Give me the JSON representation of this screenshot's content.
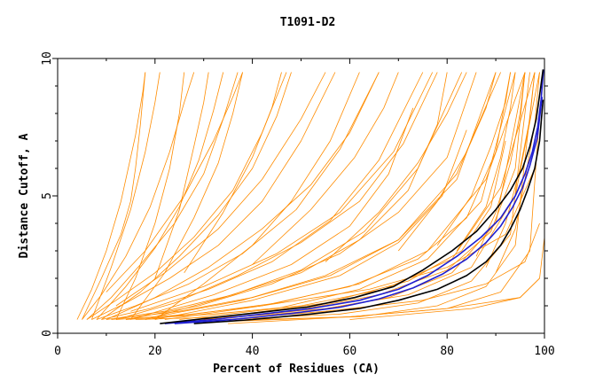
{
  "chart_data": {
    "type": "line",
    "title": "T1091-D2",
    "xlabel": "Percent of Residues (CA)",
    "ylabel": "Distance Cutoff, A",
    "xlim": [
      0,
      100
    ],
    "ylim": [
      0,
      10
    ],
    "x_ticks": [
      0,
      20,
      40,
      60,
      80,
      100
    ],
    "x_tick_labels": [
      "0",
      "20",
      "40",
      "60",
      "80",
      "100"
    ],
    "y_ticks": [
      0,
      5,
      10
    ],
    "y_tick_labels": [
      "0",
      "5",
      "10"
    ],
    "grid": false,
    "legend": "none",
    "colors": {
      "background_series": "#ff8c00",
      "highlight_blue": "#1f1fd0",
      "highlight_black": "#000000"
    },
    "series": [
      {
        "color": "#ff8c00",
        "x": [
          4,
          7,
          10,
          13,
          16,
          17.5,
          18
        ],
        "y": [
          0.5,
          1.6,
          3.0,
          4.8,
          7.2,
          8.8,
          9.5
        ]
      },
      {
        "color": "#ff8c00",
        "x": [
          5,
          9,
          14,
          19,
          23,
          26,
          28
        ],
        "y": [
          0.5,
          1.4,
          2.8,
          4.6,
          6.6,
          8.4,
          9.5
        ]
      },
      {
        "color": "#ff8c00",
        "x": [
          6,
          11,
          17,
          24,
          30,
          34,
          37
        ],
        "y": [
          0.5,
          1.3,
          2.5,
          4.0,
          5.8,
          7.8,
          9.5
        ]
      },
      {
        "color": "#ff8c00",
        "x": [
          6,
          12,
          20,
          28,
          36,
          42,
          47
        ],
        "y": [
          0.5,
          1.2,
          2.2,
          3.5,
          5.2,
          7.3,
          9.5
        ]
      },
      {
        "color": "#ff8c00",
        "x": [
          7,
          14,
          23,
          33,
          42,
          50,
          57
        ],
        "y": [
          0.5,
          1.1,
          2.0,
          3.2,
          4.8,
          7.0,
          9.5
        ]
      },
      {
        "color": "#ff8c00",
        "x": [
          8,
          16,
          27,
          38,
          49,
          58,
          66
        ],
        "y": [
          0.5,
          1.0,
          1.8,
          2.9,
          4.5,
          6.7,
          9.5
        ]
      },
      {
        "color": "#ff8c00",
        "x": [
          9,
          19,
          31,
          44,
          56,
          66,
          75
        ],
        "y": [
          0.5,
          0.9,
          1.6,
          2.6,
          4.1,
          6.3,
          9.5
        ]
      },
      {
        "color": "#ff8c00",
        "x": [
          10,
          22,
          36,
          50,
          63,
          74,
          83
        ],
        "y": [
          0.5,
          0.8,
          1.4,
          2.3,
          3.7,
          6.0,
          9.5
        ]
      },
      {
        "color": "#ff8c00",
        "x": [
          11,
          25,
          40,
          56,
          70,
          82,
          91
        ],
        "y": [
          0.5,
          0.8,
          1.3,
          2.1,
          3.4,
          5.8,
          9.5
        ]
      },
      {
        "color": "#ff8c00",
        "x": [
          12,
          28,
          45,
          62,
          76,
          88,
          96
        ],
        "y": [
          0.5,
          0.7,
          1.1,
          1.8,
          3.0,
          5.6,
          9.5
        ]
      },
      {
        "color": "#ff8c00",
        "x": [
          14,
          32,
          50,
          67,
          81,
          91,
          98
        ],
        "y": [
          0.5,
          0.7,
          1.0,
          1.6,
          2.7,
          5.3,
          9.5
        ]
      },
      {
        "color": "#ff8c00",
        "x": [
          16,
          36,
          55,
          72,
          85,
          94,
          99
        ],
        "y": [
          0.5,
          0.6,
          0.9,
          1.4,
          2.4,
          5.0,
          9.5
        ]
      },
      {
        "color": "#ff8c00",
        "x": [
          10,
          18,
          26,
          32,
          36,
          38
        ],
        "y": [
          1.5,
          3.0,
          5.0,
          7.0,
          8.6,
          9.5
        ]
      },
      {
        "color": "#ff8c00",
        "x": [
          12,
          22,
          33,
          42,
          50,
          55
        ],
        "y": [
          1.0,
          2.2,
          3.8,
          5.6,
          7.8,
          9.5
        ]
      },
      {
        "color": "#ff8c00",
        "x": [
          15,
          30,
          45,
          58,
          69,
          77
        ],
        "y": [
          0.8,
          1.7,
          2.9,
          4.4,
          6.6,
          9.5
        ]
      },
      {
        "color": "#ff8c00",
        "x": [
          20,
          38,
          55,
          70,
          82,
          90
        ],
        "y": [
          0.6,
          1.2,
          2.1,
          3.4,
          5.6,
          9.5
        ]
      },
      {
        "color": "#ff8c00",
        "x": [
          25,
          45,
          62,
          76,
          87,
          94
        ],
        "y": [
          0.5,
          0.9,
          1.6,
          2.7,
          4.8,
          9.5
        ]
      },
      {
        "color": "#ff8c00",
        "x": [
          30,
          52,
          68,
          81,
          90,
          96
        ],
        "y": [
          0.5,
          0.8,
          1.3,
          2.2,
          4.0,
          9.5
        ]
      },
      {
        "color": "#ff8c00",
        "x": [
          35,
          58,
          74,
          85,
          93,
          97
        ],
        "y": [
          0.5,
          0.7,
          1.1,
          1.9,
          3.6,
          9.5
        ]
      },
      {
        "color": "#ff8c00",
        "x": [
          40,
          62,
          78,
          88,
          94,
          98
        ],
        "y": [
          0.5,
          0.6,
          1.0,
          1.7,
          3.2,
          9.5
        ]
      },
      {
        "color": "#ff8c00",
        "x": [
          30,
          60,
          80,
          91,
          97,
          99
        ],
        "y": [
          0.4,
          0.6,
          0.9,
          1.5,
          3.0,
          8.0
        ]
      },
      {
        "color": "#ff8c00",
        "x": [
          60,
          85,
          95,
          99,
          100
        ],
        "y": [
          0.5,
          0.9,
          1.3,
          2.0,
          3.5
        ]
      },
      {
        "color": "#ff8c00",
        "x": [
          35,
          60,
          80,
          95,
          99
        ],
        "y": [
          0.35,
          0.6,
          0.9,
          1.3,
          2.0
        ]
      },
      {
        "color": "#ff8c00",
        "x": [
          28,
          55,
          75,
          88,
          96,
          99
        ],
        "y": [
          0.4,
          0.8,
          1.2,
          1.8,
          2.6,
          4.0
        ]
      },
      {
        "color": "#ff8c00",
        "x": [
          18,
          42,
          64,
          80,
          92,
          98
        ],
        "y": [
          0.5,
          1.0,
          1.6,
          2.4,
          3.6,
          6.0
        ]
      },
      {
        "color": "#ff8c00",
        "x": [
          5,
          9,
          13,
          15,
          16,
          17,
          18
        ],
        "y": [
          0.5,
          2.0,
          3.6,
          4.8,
          6.0,
          7.6,
          9.5
        ]
      },
      {
        "color": "#ff8c00",
        "x": [
          12,
          16,
          20,
          23,
          25,
          26
        ],
        "y": [
          0.5,
          2.0,
          4.0,
          6.0,
          8.0,
          9.5
        ]
      },
      {
        "color": "#ff8c00",
        "x": [
          15,
          22,
          28,
          33,
          36,
          38
        ],
        "y": [
          0.5,
          2.2,
          4.2,
          6.2,
          8.0,
          9.5
        ]
      },
      {
        "color": "#ff8c00",
        "x": [
          20,
          30,
          40,
          48,
          56,
          62
        ],
        "y": [
          0.5,
          1.8,
          3.2,
          4.8,
          7.0,
          9.5
        ]
      },
      {
        "color": "#ff8c00",
        "x": [
          18,
          34,
          50,
          62,
          72,
          78,
          80
        ],
        "y": [
          0.5,
          1.3,
          2.2,
          3.4,
          5.2,
          7.6,
          9.5
        ]
      },
      {
        "color": "#ff8c00",
        "x": [
          22,
          42,
          60,
          74,
          84,
          90,
          93
        ],
        "y": [
          0.5,
          1.0,
          1.7,
          2.7,
          4.2,
          6.6,
          9.5
        ]
      },
      {
        "color": "#ff8c00",
        "x": [
          26,
          48,
          66,
          80,
          89,
          94,
          96
        ],
        "y": [
          0.4,
          0.8,
          1.4,
          2.3,
          3.7,
          6.0,
          9.5
        ]
      },
      {
        "color": "#ff8c00",
        "x": [
          8,
          14,
          20,
          25,
          29,
          32,
          34
        ],
        "y": [
          0.5,
          1.7,
          3.1,
          4.6,
          6.3,
          8.1,
          9.5
        ]
      },
      {
        "color": "#ff8c00",
        "x": [
          9,
          17,
          25,
          33,
          40,
          45,
          48
        ],
        "y": [
          0.5,
          1.5,
          2.8,
          4.3,
          6.0,
          7.9,
          9.5
        ]
      },
      {
        "color": "#ff8c00",
        "x": [
          10,
          20,
          31,
          42,
          52,
          60,
          66
        ],
        "y": [
          0.5,
          1.3,
          2.4,
          3.8,
          5.4,
          7.3,
          9.5
        ]
      },
      {
        "color": "#ff8c00",
        "x": [
          12,
          24,
          37,
          50,
          62,
          71,
          78
        ],
        "y": [
          0.5,
          1.1,
          2.1,
          3.3,
          4.8,
          6.9,
          9.5
        ]
      },
      {
        "color": "#ff8c00",
        "x": [
          14,
          29,
          44,
          58,
          70,
          80,
          86
        ],
        "y": [
          0.5,
          1.0,
          1.8,
          2.9,
          4.4,
          6.4,
          9.5
        ]
      },
      {
        "color": "#ff8c00",
        "x": [
          7,
          11,
          15,
          18,
          20,
          21
        ],
        "y": [
          0.5,
          2.4,
          4.5,
          6.6,
          8.4,
          9.5
        ]
      },
      {
        "color": "#ff8c00",
        "x": [
          20,
          25,
          28,
          30,
          31
        ],
        "y": [
          2.0,
          4.5,
          6.8,
          8.4,
          9.5
        ]
      },
      {
        "color": "#ff8c00",
        "x": [
          26,
          34,
          40,
          44,
          46
        ],
        "y": [
          2.2,
          4.4,
          6.4,
          8.2,
          9.5
        ]
      },
      {
        "color": "#ff8c00",
        "x": [
          40,
          52,
          61,
          67,
          70
        ],
        "y": [
          2.5,
          4.5,
          6.4,
          8.2,
          9.5
        ]
      },
      {
        "color": "#ff8c00",
        "x": [
          55,
          66,
          74,
          80,
          84
        ],
        "y": [
          2.6,
          4.4,
          6.2,
          8.0,
          9.5
        ]
      },
      {
        "color": "#ff8c00",
        "x": [
          70,
          78,
          84,
          88,
          90
        ],
        "y": [
          3.0,
          4.8,
          6.6,
          8.2,
          9.5
        ]
      },
      {
        "color": "#ff8c00",
        "x": [
          78,
          85,
          89,
          92,
          93
        ],
        "y": [
          3.2,
          5.0,
          6.8,
          8.4,
          9.5
        ]
      },
      {
        "color": "#ff8c00",
        "x": [
          82,
          88,
          91,
          93,
          94
        ],
        "y": [
          3.0,
          4.6,
          6.4,
          8.2,
          9.5
        ]
      },
      {
        "color": "#ff8c00",
        "x": [
          86,
          90,
          93,
          95,
          96
        ],
        "y": [
          2.8,
          4.4,
          6.2,
          8.0,
          9.5
        ]
      },
      {
        "color": "#ff8c00",
        "x": [
          88,
          92,
          95,
          97,
          98
        ],
        "y": [
          2.4,
          4.0,
          6.0,
          7.8,
          9.5
        ]
      },
      {
        "color": "#ff8c00",
        "x": [
          90,
          94,
          96,
          98,
          99
        ],
        "y": [
          2.2,
          3.8,
          5.6,
          7.6,
          9.5
        ]
      },
      {
        "color": "#ff8c00",
        "x": [
          30,
          55,
          72,
          83,
          89,
          92
        ],
        "y": [
          0.5,
          1.1,
          1.9,
          3.0,
          4.6,
          7.0
        ]
      },
      {
        "color": "#ff8c00",
        "x": [
          20,
          40,
          58,
          70,
          79,
          84
        ],
        "y": [
          0.5,
          1.2,
          2.1,
          3.3,
          5.0,
          7.4
        ]
      },
      {
        "color": "#ff8c00",
        "x": [
          15,
          32,
          48,
          60,
          68,
          73
        ],
        "y": [
          0.5,
          1.4,
          2.5,
          3.9,
          5.8,
          8.2
        ]
      },
      {
        "color": "#1f1fd0",
        "x": [
          22,
          32,
          42,
          52,
          62,
          70,
          76,
          82,
          87,
          91,
          94,
          96,
          97.5,
          98.6,
          99.3,
          99.8
        ],
        "y": [
          0.35,
          0.5,
          0.7,
          0.9,
          1.2,
          1.6,
          2.1,
          2.8,
          3.5,
          4.2,
          5.0,
          5.8,
          6.6,
          7.5,
          8.5,
          9.6
        ]
      },
      {
        "color": "#000000",
        "x": [
          21,
          31,
          41,
          51,
          61,
          69,
          75,
          81,
          86,
          90,
          93,
          95.5,
          97,
          98.3,
          99.1,
          99.7
        ],
        "y": [
          0.35,
          0.55,
          0.75,
          0.95,
          1.3,
          1.7,
          2.3,
          3.0,
          3.7,
          4.5,
          5.2,
          6.0,
          6.8,
          7.8,
          8.8,
          9.6
        ]
      },
      {
        "color": "#000000",
        "x": [
          28,
          40,
          52,
          62,
          70,
          78,
          84,
          88,
          91,
          93,
          95,
          96.5,
          98,
          99,
          99.7
        ],
        "y": [
          0.35,
          0.5,
          0.7,
          0.9,
          1.2,
          1.6,
          2.1,
          2.6,
          3.2,
          3.8,
          4.5,
          5.2,
          6.0,
          7.0,
          8.5
        ]
      },
      {
        "color": "#1f1fd0",
        "x": [
          24,
          36,
          48,
          58,
          66,
          73,
          79,
          84,
          88,
          91,
          93.5,
          95.5,
          97,
          98.5,
          99.5
        ],
        "y": [
          0.35,
          0.5,
          0.72,
          0.95,
          1.25,
          1.65,
          2.15,
          2.7,
          3.3,
          3.9,
          4.6,
          5.3,
          6.1,
          7.1,
          8.6
        ]
      }
    ]
  }
}
